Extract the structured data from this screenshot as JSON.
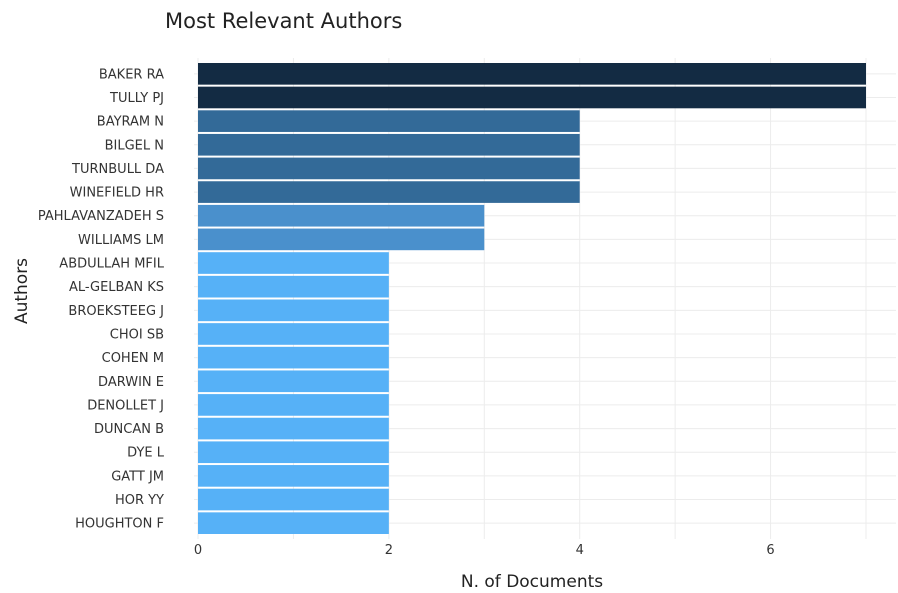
{
  "chart_data": {
    "type": "bar",
    "orientation": "horizontal",
    "title": "Most Relevant Authors",
    "xlabel": "N. of Documents",
    "ylabel": "Authors",
    "xlim": [
      0,
      7
    ],
    "xticks": [
      0,
      2,
      4,
      6
    ],
    "grid": true,
    "legend": "none",
    "categories": [
      "BAKER RA",
      "TULLY PJ",
      "BAYRAM N",
      "BILGEL N",
      "TURNBULL DA",
      "WINEFIELD HR",
      "PAHLAVANZADEH S",
      "WILLIAMS LM",
      "ABDULLAH MFIL",
      "AL-GELBAN KS",
      "BROEKSTEEG J",
      "CHOI SB",
      "COHEN M",
      "DARWIN E",
      "DENOLLET J",
      "DUNCAN B",
      "DYE L",
      "GATT JM",
      "HOR YY",
      "HOUGHTON F"
    ],
    "values": [
      7,
      7,
      4,
      4,
      4,
      4,
      3,
      3,
      2,
      2,
      2,
      2,
      2,
      2,
      2,
      2,
      2,
      2,
      2,
      2
    ],
    "colors": {
      "7": "#132b43",
      "4": "#336a98",
      "3": "#4a90cc",
      "2": "#56b1f7"
    }
  }
}
